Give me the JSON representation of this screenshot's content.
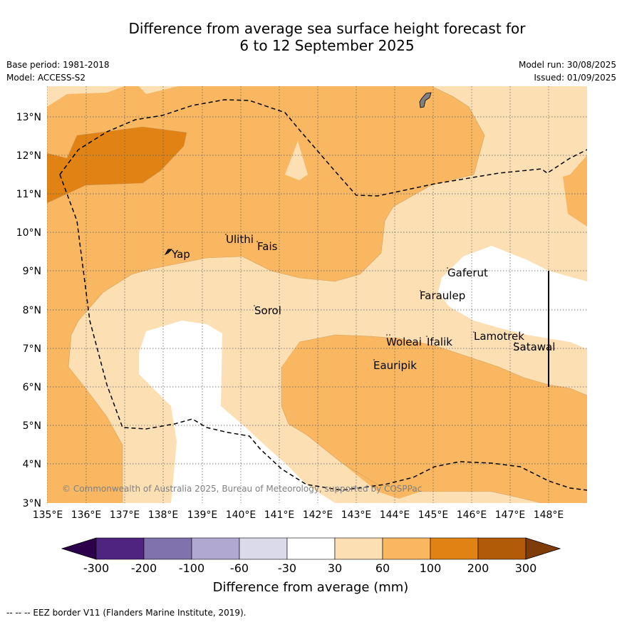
{
  "header": {
    "title_line1": "Difference from average sea surface height forecast for",
    "title_line2": "6 to 12 September 2025",
    "base_period": "Base period: 1981-2018",
    "model": "Model: ACCESS-S2",
    "model_run": "Model run: 30/08/2025",
    "issued": "Issued: 01/09/2025"
  },
  "map": {
    "lon_labels": [
      "135°E",
      "136°E",
      "137°E",
      "138°E",
      "139°E",
      "140°E",
      "141°E",
      "142°E",
      "143°E",
      "144°E",
      "145°E",
      "146°E",
      "147°E",
      "148°E"
    ],
    "lat_labels": [
      "13°N",
      "12°N",
      "11°N",
      "10°N",
      "9°N",
      "8°N",
      "7°N",
      "6°N",
      "5°N",
      "4°N",
      "3°N"
    ],
    "places": [
      "Yap",
      "Ulithi",
      "Fais",
      "Sorol",
      "Gaferut",
      "Faraulep",
      "Woleai",
      "Ifalik",
      "Lamotrek",
      "Satawal",
      "Eauripik"
    ],
    "copyright": "© Commonwealth of Australia 2025, Bureau of Meteorology, supported by COSPPac"
  },
  "colorbar": {
    "tick_labels": [
      "-300",
      "-200",
      "-100",
      "-60",
      "-30",
      "30",
      "60",
      "100",
      "200",
      "300"
    ],
    "colors": [
      "#4f2480",
      "#7f72ad",
      "#b0a8d1",
      "#dadaeb",
      "#ffffff",
      "#fddfb4",
      "#f9b761",
      "#e08214",
      "#b15a08"
    ],
    "under_color": "#2d004b",
    "over_color": "#7f3b08",
    "title": "Difference from average (mm)"
  },
  "footnote": "--  --  -- EEZ border V11 (Flanders Marine Institute, 2019)."
}
